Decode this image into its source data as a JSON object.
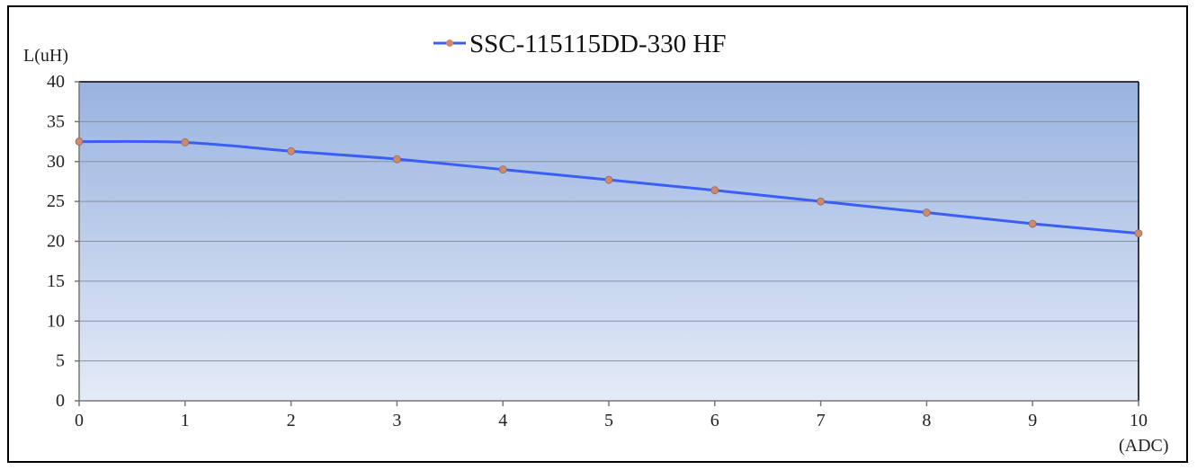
{
  "chart_data": {
    "type": "line",
    "title": "",
    "ylabel": "L(uH)",
    "xlabel": "(ADC)",
    "x": [
      0,
      1,
      2,
      3,
      4,
      5,
      6,
      7,
      8,
      9,
      10
    ],
    "xticks": [
      "0",
      "1",
      "2",
      "3",
      "4",
      "5",
      "6",
      "7",
      "8",
      "9",
      "10"
    ],
    "yticks": [
      "0",
      "5",
      "10",
      "15",
      "20",
      "25",
      "30",
      "35",
      "40"
    ],
    "xlim": [
      0,
      10
    ],
    "ylim": [
      0,
      40
    ],
    "grid": true,
    "legend_position": "top-center",
    "series": [
      {
        "name": "SSC-115115DD-330 HF",
        "values": [
          32.5,
          32.4,
          31.3,
          30.3,
          29.0,
          27.7,
          26.4,
          25.0,
          23.6,
          22.2,
          21.0
        ],
        "line_color": "#3b5ff5",
        "marker_color": "#d08a6a"
      }
    ],
    "plot_background": {
      "top_color": "#99b3e0",
      "bottom_color": "#e4ebf7"
    }
  }
}
